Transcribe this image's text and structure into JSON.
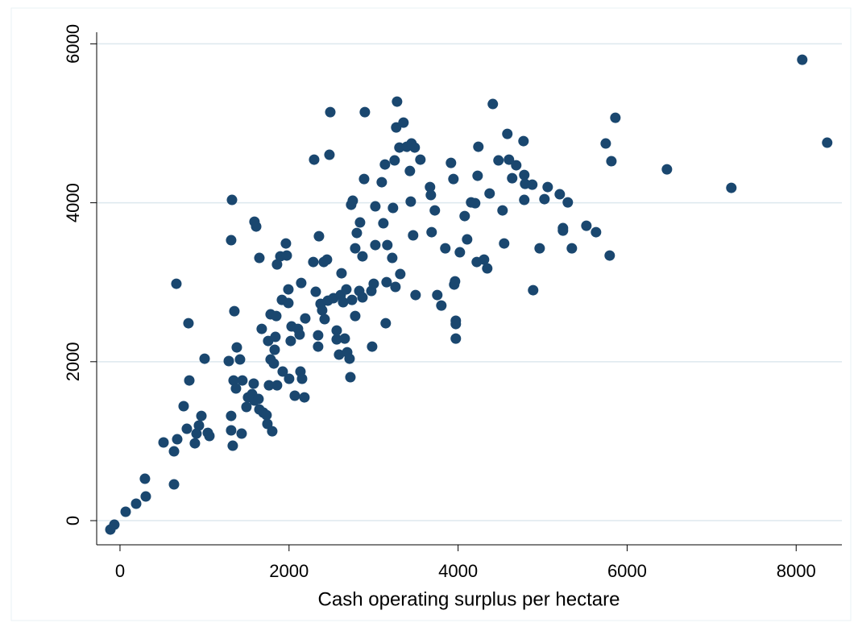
{
  "chart_data": {
    "type": "scatter",
    "x_label": "Cash operating surplus per hectare",
    "color": "#1a476f",
    "grid": true,
    "xlim": [
      -276,
      8541
    ],
    "ylim": [
      -304,
      6146
    ],
    "xticks": [
      0,
      2000,
      4000,
      6000,
      8000
    ],
    "yticks": [
      0,
      2000,
      4000,
      6000
    ],
    "x": [
      -114,
      -67,
      67,
      191,
      295,
      305,
      515,
      639,
      639,
      677,
      667,
      753,
      791,
      820,
      810,
      886,
      905,
      934,
      963,
      1001,
      1039,
      1058,
      1287,
      1315,
      1315,
      1325,
      1315,
      1334,
      1344,
      1353,
      1372,
      1382,
      1439,
      1420,
      1448,
      1496,
      1515,
      1563,
      1582,
      1591,
      1591,
      1611,
      1649,
      1639,
      1649,
      1677,
      1696,
      1734,
      1744,
      1801,
      1753,
      1763,
      1782,
      1782,
      1820,
      1830,
      1839,
      1849,
      1858,
      1858,
      1897,
      1916,
      1925,
      1963,
      1973,
      1992,
      1992,
      2001,
      2020,
      2030,
      2068,
      2106,
      2125,
      2135,
      2144,
      2154,
      2182,
      2192,
      2287,
      2297,
      2316,
      2344,
      2344,
      2354,
      2373,
      2392,
      2421,
      2411,
      2449,
      2459,
      2478,
      2488,
      2525,
      2564,
      2564,
      2592,
      2611,
      2621,
      2640,
      2659,
      2678,
      2688,
      2716,
      2726,
      2745,
      2735,
      2754,
      2783,
      2783,
      2802,
      2831,
      2840,
      2869,
      2869,
      2888,
      2897,
      2974,
      2983,
      3002,
      3021,
      3021,
      3097,
      3116,
      3135,
      3144,
      3154,
      3163,
      3221,
      3230,
      3249,
      3259,
      3278,
      3268,
      3306,
      3316,
      3354,
      3392,
      3430,
      3449,
      3440,
      3468,
      3487,
      3497,
      3554,
      3668,
      3678,
      3687,
      3725,
      3754,
      3802,
      3849,
      3916,
      3945,
      3954,
      3964,
      3973,
      3973,
      3973,
      4021,
      4078,
      4107,
      4154,
      4202,
      4221,
      4231,
      4240,
      4307,
      4345,
      4373,
      4411,
      4478,
      4526,
      4545,
      4583,
      4602,
      4640,
      4688,
      4774,
      4783,
      4783,
      4793,
      4878,
      4888,
      4965,
      5022,
      5060,
      5203,
      5241,
      5241,
      5298,
      5346,
      5518,
      5632,
      5747,
      5794,
      5814,
      5861,
      6471,
      7233,
      8072,
      8367
    ],
    "values": [
      -112,
      -51,
      112,
      213,
      527,
      304,
      984,
      456,
      872,
      1024,
      2981,
      1440,
      1156,
      1764,
      2484,
      973,
      1095,
      1197,
      1318,
      2038,
      1105,
      1065,
      2008,
      1318,
      1136,
      4036,
      3529,
      943,
      1764,
      2636,
      1663,
      2180,
      1095,
      2028,
      1764,
      1430,
      1551,
      1592,
      1724,
      1511,
      3762,
      3701,
      1399,
      1531,
      3306,
      2413,
      1359,
      1328,
      1217,
      1125,
      2261,
      1703,
      2596,
      2028,
      1977,
      2150,
      2312,
      2575,
      1703,
      3224,
      3326,
      2778,
      1876,
      3488,
      3336,
      2910,
      2738,
      1785,
      2261,
      2444,
      1572,
      2413,
      2342,
      1876,
      2991,
      1785,
      1551,
      2545,
      3255,
      4543,
      2880,
      2190,
      2332,
      3579,
      2728,
      2647,
      2535,
      3255,
      3285,
      2768,
      4604,
      5141,
      2799,
      2393,
      2281,
      2089,
      2839,
      3113,
      2748,
      2291,
      2910,
      2119,
      2038,
      1805,
      2778,
      3975,
      4026,
      2575,
      3427,
      3620,
      2890,
      3752,
      2809,
      3326,
      4299,
      5141,
      2890,
      2190,
      2981,
      3468,
      3955,
      4259,
      3742,
      4482,
      2484,
      3001,
      3468,
      3306,
      3935,
      4533,
      2941,
      5273,
      4948,
      4695,
      3103,
      5009,
      4705,
      4400,
      4746,
      4015,
      3590,
      4695,
      2839,
      4543,
      4198,
      4097,
      3630,
      3904,
      2839,
      2707,
      3427,
      4502,
      4299,
      2971,
      3011,
      2515,
      2474,
      2291,
      3377,
      3833,
      3539,
      4005,
      3995,
      3255,
      4340,
      4705,
      3285,
      3174,
      4117,
      5243,
      4533,
      3904,
      3488,
      4867,
      4543,
      4309,
      4472,
      4776,
      4350,
      4036,
      4238,
      4228,
      2900,
      3427,
      4046,
      4198,
      4107,
      3681,
      3650,
      4005,
      3427,
      3711,
      3630,
      4746,
      3336,
      4523,
      5070,
      4421,
      4188,
      5800,
      4756
    ]
  }
}
